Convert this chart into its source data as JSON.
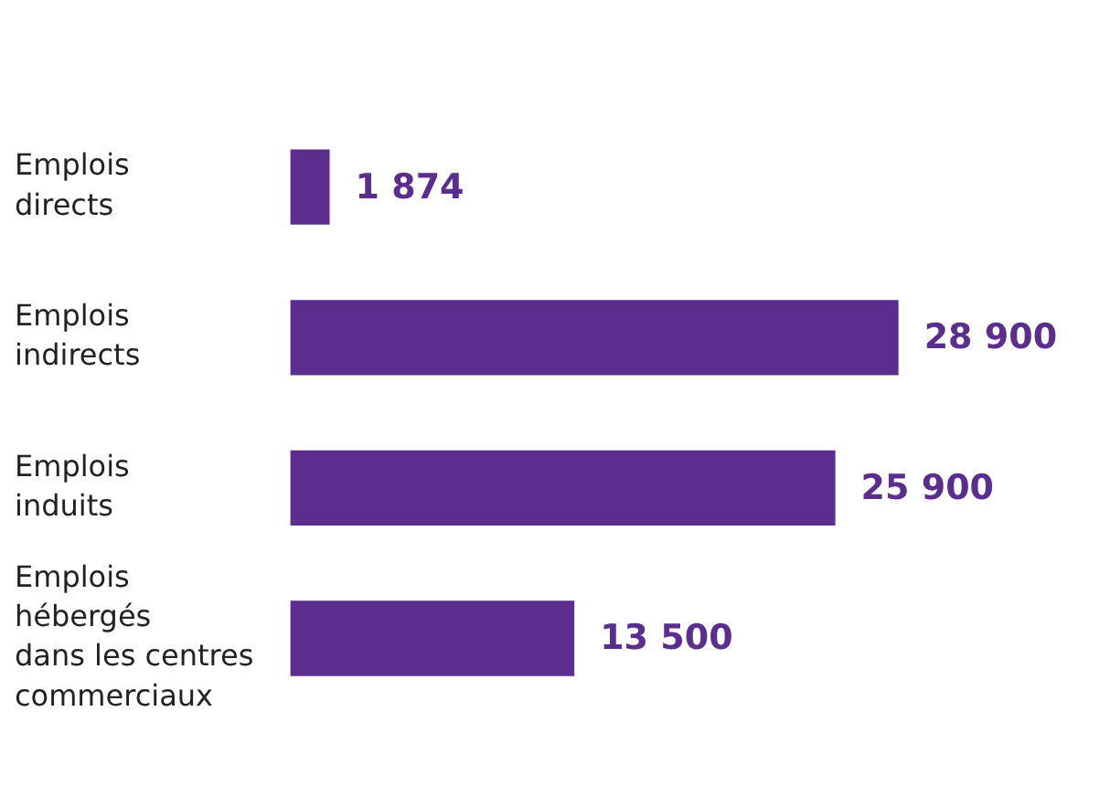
{
  "chart_data": {
    "type": "bar",
    "orientation": "horizontal",
    "categories": [
      "Emplois\ndirects",
      "Emplois\nindirects",
      "Emplois\ninduits",
      "Emplois\nhébergés\ndans les centres\ncommerciaux"
    ],
    "values": [
      1874,
      28900,
      25900,
      13500
    ],
    "value_labels": [
      "1 874",
      "28 900",
      "25 900",
      "13 500"
    ],
    "color": "#5b2d8e",
    "grid": false,
    "legend": false
  }
}
